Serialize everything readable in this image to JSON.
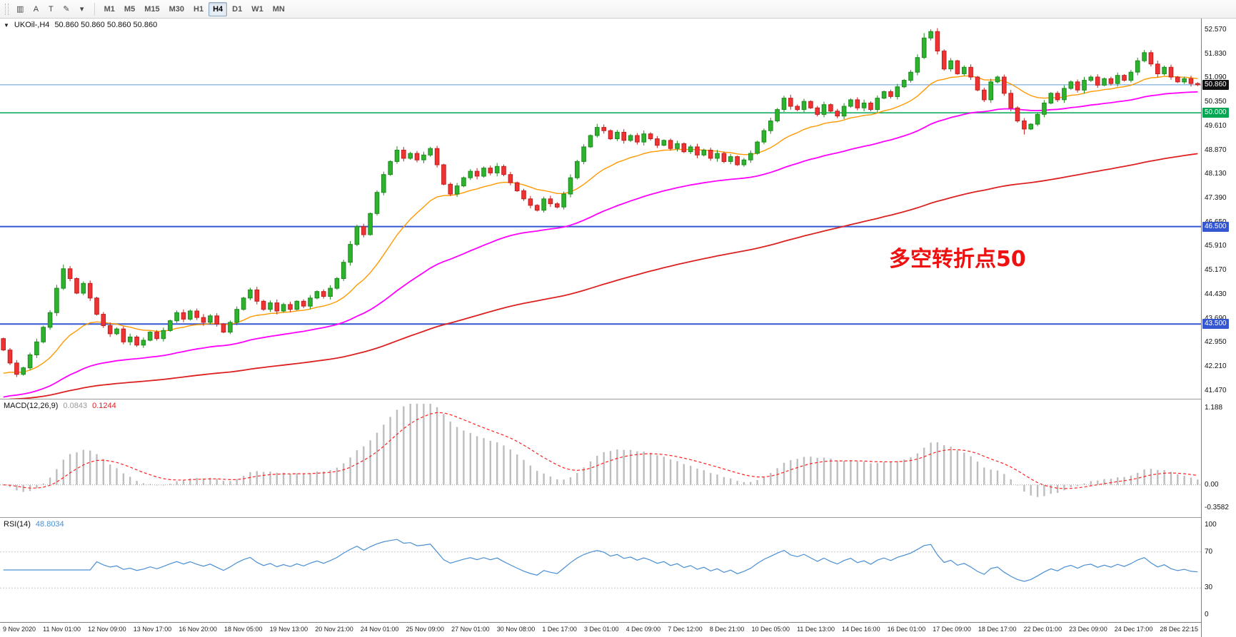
{
  "toolbar": {
    "tools": [
      {
        "id": "chart-grid",
        "glyph": "▥"
      },
      {
        "id": "cursor-arrow",
        "glyph": "A"
      },
      {
        "id": "text-label",
        "glyph": "T"
      },
      {
        "id": "draw-tools",
        "glyph": "✎"
      },
      {
        "id": "tools-dropdown",
        "glyph": "▾"
      }
    ],
    "timeframes": [
      "M1",
      "M5",
      "M15",
      "M30",
      "H1",
      "H4",
      "D1",
      "W1",
      "MN"
    ],
    "active_timeframe": "H4"
  },
  "symbol_header": {
    "dropdown_glyph": "▼",
    "title": "UKOil-,H4",
    "quotes": "50.860 50.860 50.860 50.860"
  },
  "annotation": {
    "text": "多空转折点50",
    "color": "#ee1111"
  },
  "indicators": {
    "macd": {
      "label": "MACD(12,26,9)",
      "value_main": "0.0843",
      "value_signal": "0.1244",
      "fast": 12,
      "slow": 26,
      "signal": 9,
      "range": {
        "min": -0.5,
        "max": 1.32
      },
      "axis_labels": [
        {
          "text": "1.188",
          "v": 1.188
        },
        {
          "text": "0.00",
          "v": 0
        },
        {
          "text": "-0.3582",
          "v": -0.3582
        }
      ]
    },
    "rsi": {
      "label": "RSI(14)",
      "value": "48.8034",
      "period": 14,
      "levels": [
        70,
        30
      ],
      "range": {
        "min": -8,
        "max": 108
      },
      "axis_labels": [
        {
          "text": "100",
          "v": 100
        },
        {
          "text": "70",
          "v": 70
        },
        {
          "text": "30",
          "v": 30
        },
        {
          "text": "0",
          "v": 0
        }
      ]
    }
  },
  "chart_data": {
    "type": "candlestick",
    "symbol": "UKOil-",
    "timeframe": "H4",
    "current_price": 50.86,
    "price_range": {
      "min": 41.2,
      "max": 52.9
    },
    "first_open": 43.05,
    "wick": 0.08,
    "closes": [
      42.7,
      42.3,
      41.95,
      42.15,
      42.55,
      42.95,
      43.4,
      43.85,
      44.6,
      45.2,
      44.9,
      44.45,
      44.75,
      44.3,
      43.8,
      43.45,
      43.2,
      43.35,
      42.95,
      43.1,
      42.85,
      43.0,
      43.25,
      43.05,
      43.3,
      43.6,
      43.85,
      43.65,
      43.9,
      43.7,
      43.55,
      43.75,
      43.5,
      43.25,
      43.55,
      43.95,
      44.3,
      44.55,
      44.2,
      43.95,
      44.15,
      43.9,
      44.1,
      43.95,
      44.2,
      44.05,
      44.3,
      44.5,
      44.35,
      44.6,
      44.9,
      45.4,
      45.95,
      46.5,
      46.25,
      46.9,
      47.55,
      48.1,
      48.5,
      48.85,
      48.6,
      48.75,
      48.55,
      48.7,
      48.9,
      48.4,
      47.8,
      47.5,
      47.75,
      48.0,
      48.2,
      48.05,
      48.3,
      48.15,
      48.35,
      48.1,
      47.85,
      47.6,
      47.35,
      47.15,
      47.0,
      47.35,
      47.2,
      47.1,
      47.5,
      48.0,
      48.5,
      48.95,
      49.3,
      49.55,
      49.45,
      49.2,
      49.4,
      49.15,
      49.3,
      49.1,
      49.35,
      49.2,
      49.0,
      49.15,
      48.9,
      49.05,
      48.8,
      48.95,
      48.7,
      48.85,
      48.6,
      48.75,
      48.5,
      48.65,
      48.4,
      48.55,
      48.75,
      49.1,
      49.45,
      49.75,
      50.1,
      50.45,
      50.2,
      50.1,
      50.35,
      50.15,
      49.95,
      50.25,
      50.05,
      49.9,
      50.2,
      50.4,
      50.15,
      50.3,
      50.1,
      50.45,
      50.65,
      50.5,
      50.8,
      51.0,
      51.25,
      51.7,
      52.3,
      52.5,
      51.9,
      51.35,
      51.6,
      51.2,
      51.4,
      51.1,
      50.7,
      50.4,
      50.95,
      51.1,
      50.6,
      50.15,
      49.75,
      49.5,
      49.65,
      49.95,
      50.3,
      50.6,
      50.4,
      50.75,
      50.95,
      50.7,
      51.0,
      51.1,
      50.85,
      51.05,
      50.9,
      51.15,
      51.0,
      51.25,
      51.6,
      51.85,
      51.5,
      51.2,
      51.4,
      51.1,
      50.95,
      51.05,
      50.9,
      50.86
    ],
    "spike_highs": {
      "9": 45.33,
      "59": 48.97,
      "64": 48.95,
      "89": 49.66,
      "138": 52.45,
      "139": 52.57,
      "171": 51.93
    },
    "spike_lows": {
      "2": 41.87,
      "80": 46.96,
      "153": 49.33
    },
    "moving_averages": [
      {
        "name": "ema-fast",
        "period": 18,
        "seed": 41.9,
        "color": "#ff9900",
        "stroke": 1.4
      },
      {
        "name": "ema-medium",
        "period": 55,
        "seed": 41.2,
        "color": "#ff00ff",
        "stroke": 1.8
      },
      {
        "name": "ema-slow",
        "period": 150,
        "seed": 41.15,
        "color": "#dd2020",
        "stroke": 1.8
      }
    ],
    "hlines": [
      {
        "price": 50.86,
        "color": "#5b9bd5",
        "width": 1,
        "label": "50.860",
        "label_bg": "#111111",
        "label_fg": "#ffffff"
      },
      {
        "price": 50.0,
        "color": "#00a651",
        "width": 1.5,
        "label": "50.000",
        "label_bg": "#00a651",
        "label_fg": "#ffffff"
      },
      {
        "price": 46.5,
        "color": "#3456d1",
        "width": 2,
        "label": "46.500",
        "label_bg": "#3456d1",
        "label_fg": "#ffffff"
      },
      {
        "price": 43.5,
        "color": "#3456d1",
        "width": 2,
        "label": "43.500",
        "label_bg": "#3456d1",
        "label_fg": "#ffffff"
      }
    ],
    "price_axis_labels": [
      "52.570",
      "51.830",
      "51.090",
      "50.350",
      "49.610",
      "48.870",
      "48.130",
      "47.390",
      "46.650",
      "45.910",
      "45.170",
      "44.430",
      "43.690",
      "42.950",
      "42.210",
      "41.470"
    ],
    "time_labels": [
      "9 Nov 2020",
      "11 Nov 01:00",
      "12 Nov 09:00",
      "13 Nov 17:00",
      "16 Nov 20:00",
      "18 Nov 05:00",
      "19 Nov 13:00",
      "20 Nov 21:00",
      "24 Nov 01:00",
      "25 Nov 09:00",
      "27 Nov 01:00",
      "30 Nov 08:00",
      "1 Dec 17:00",
      "3 Dec 01:00",
      "4 Dec 09:00",
      "7 Dec 12:00",
      "8 Dec 21:00",
      "10 Dec 05:00",
      "11 Dec 13:00",
      "14 Dec 16:00",
      "16 Dec 01:00",
      "17 Dec 09:00",
      "18 Dec 17:00",
      "22 Dec 01:00",
      "23 Dec 09:00",
      "24 Dec 17:00",
      "28 Dec 22:15"
    ],
    "colors": {
      "up": "#2db32d",
      "up_stroke": "#1d8a1d",
      "down": "#ef3333",
      "down_stroke": "#c21f1f",
      "macd_hist": "#bdbdbd",
      "macd_signal": "#ff2020",
      "rsi": "#4a8fd3"
    }
  }
}
